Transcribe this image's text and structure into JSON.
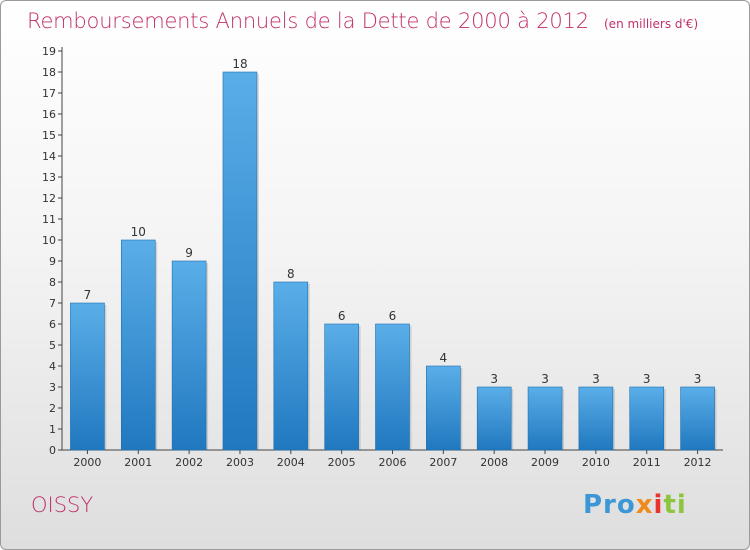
{
  "title": "Remboursements Annuels de la Dette de 2000 à 2012",
  "unit_note": "(en milliers d'€)",
  "place_name": "OISSY",
  "logo": {
    "text": "Proxiti",
    "parts": [
      "Pro",
      "x",
      "i",
      "ti"
    ]
  },
  "colors": {
    "accent": "#c0306a",
    "bar_top": "#5aaee8",
    "bar_bottom": "#2078bf"
  },
  "chart_data": {
    "type": "bar",
    "title": "Remboursements Annuels de la Dette de 2000 à 2012",
    "categories": [
      "2000",
      "2001",
      "2002",
      "2003",
      "2004",
      "2005",
      "2006",
      "2007",
      "2008",
      "2009",
      "2010",
      "2011",
      "2012"
    ],
    "values": [
      7,
      10,
      9,
      18,
      8,
      6,
      6,
      4,
      3,
      3,
      3,
      3,
      3
    ],
    "ylim": [
      0,
      19
    ],
    "yticks": [
      "0",
      "1",
      "2",
      "3",
      "4",
      "5",
      "6",
      "7",
      "8",
      "9",
      "10",
      "11",
      "12",
      "13",
      "14",
      "15",
      "16",
      "17",
      "18",
      "19"
    ],
    "xlabel": "",
    "ylabel": "",
    "grid": false
  }
}
